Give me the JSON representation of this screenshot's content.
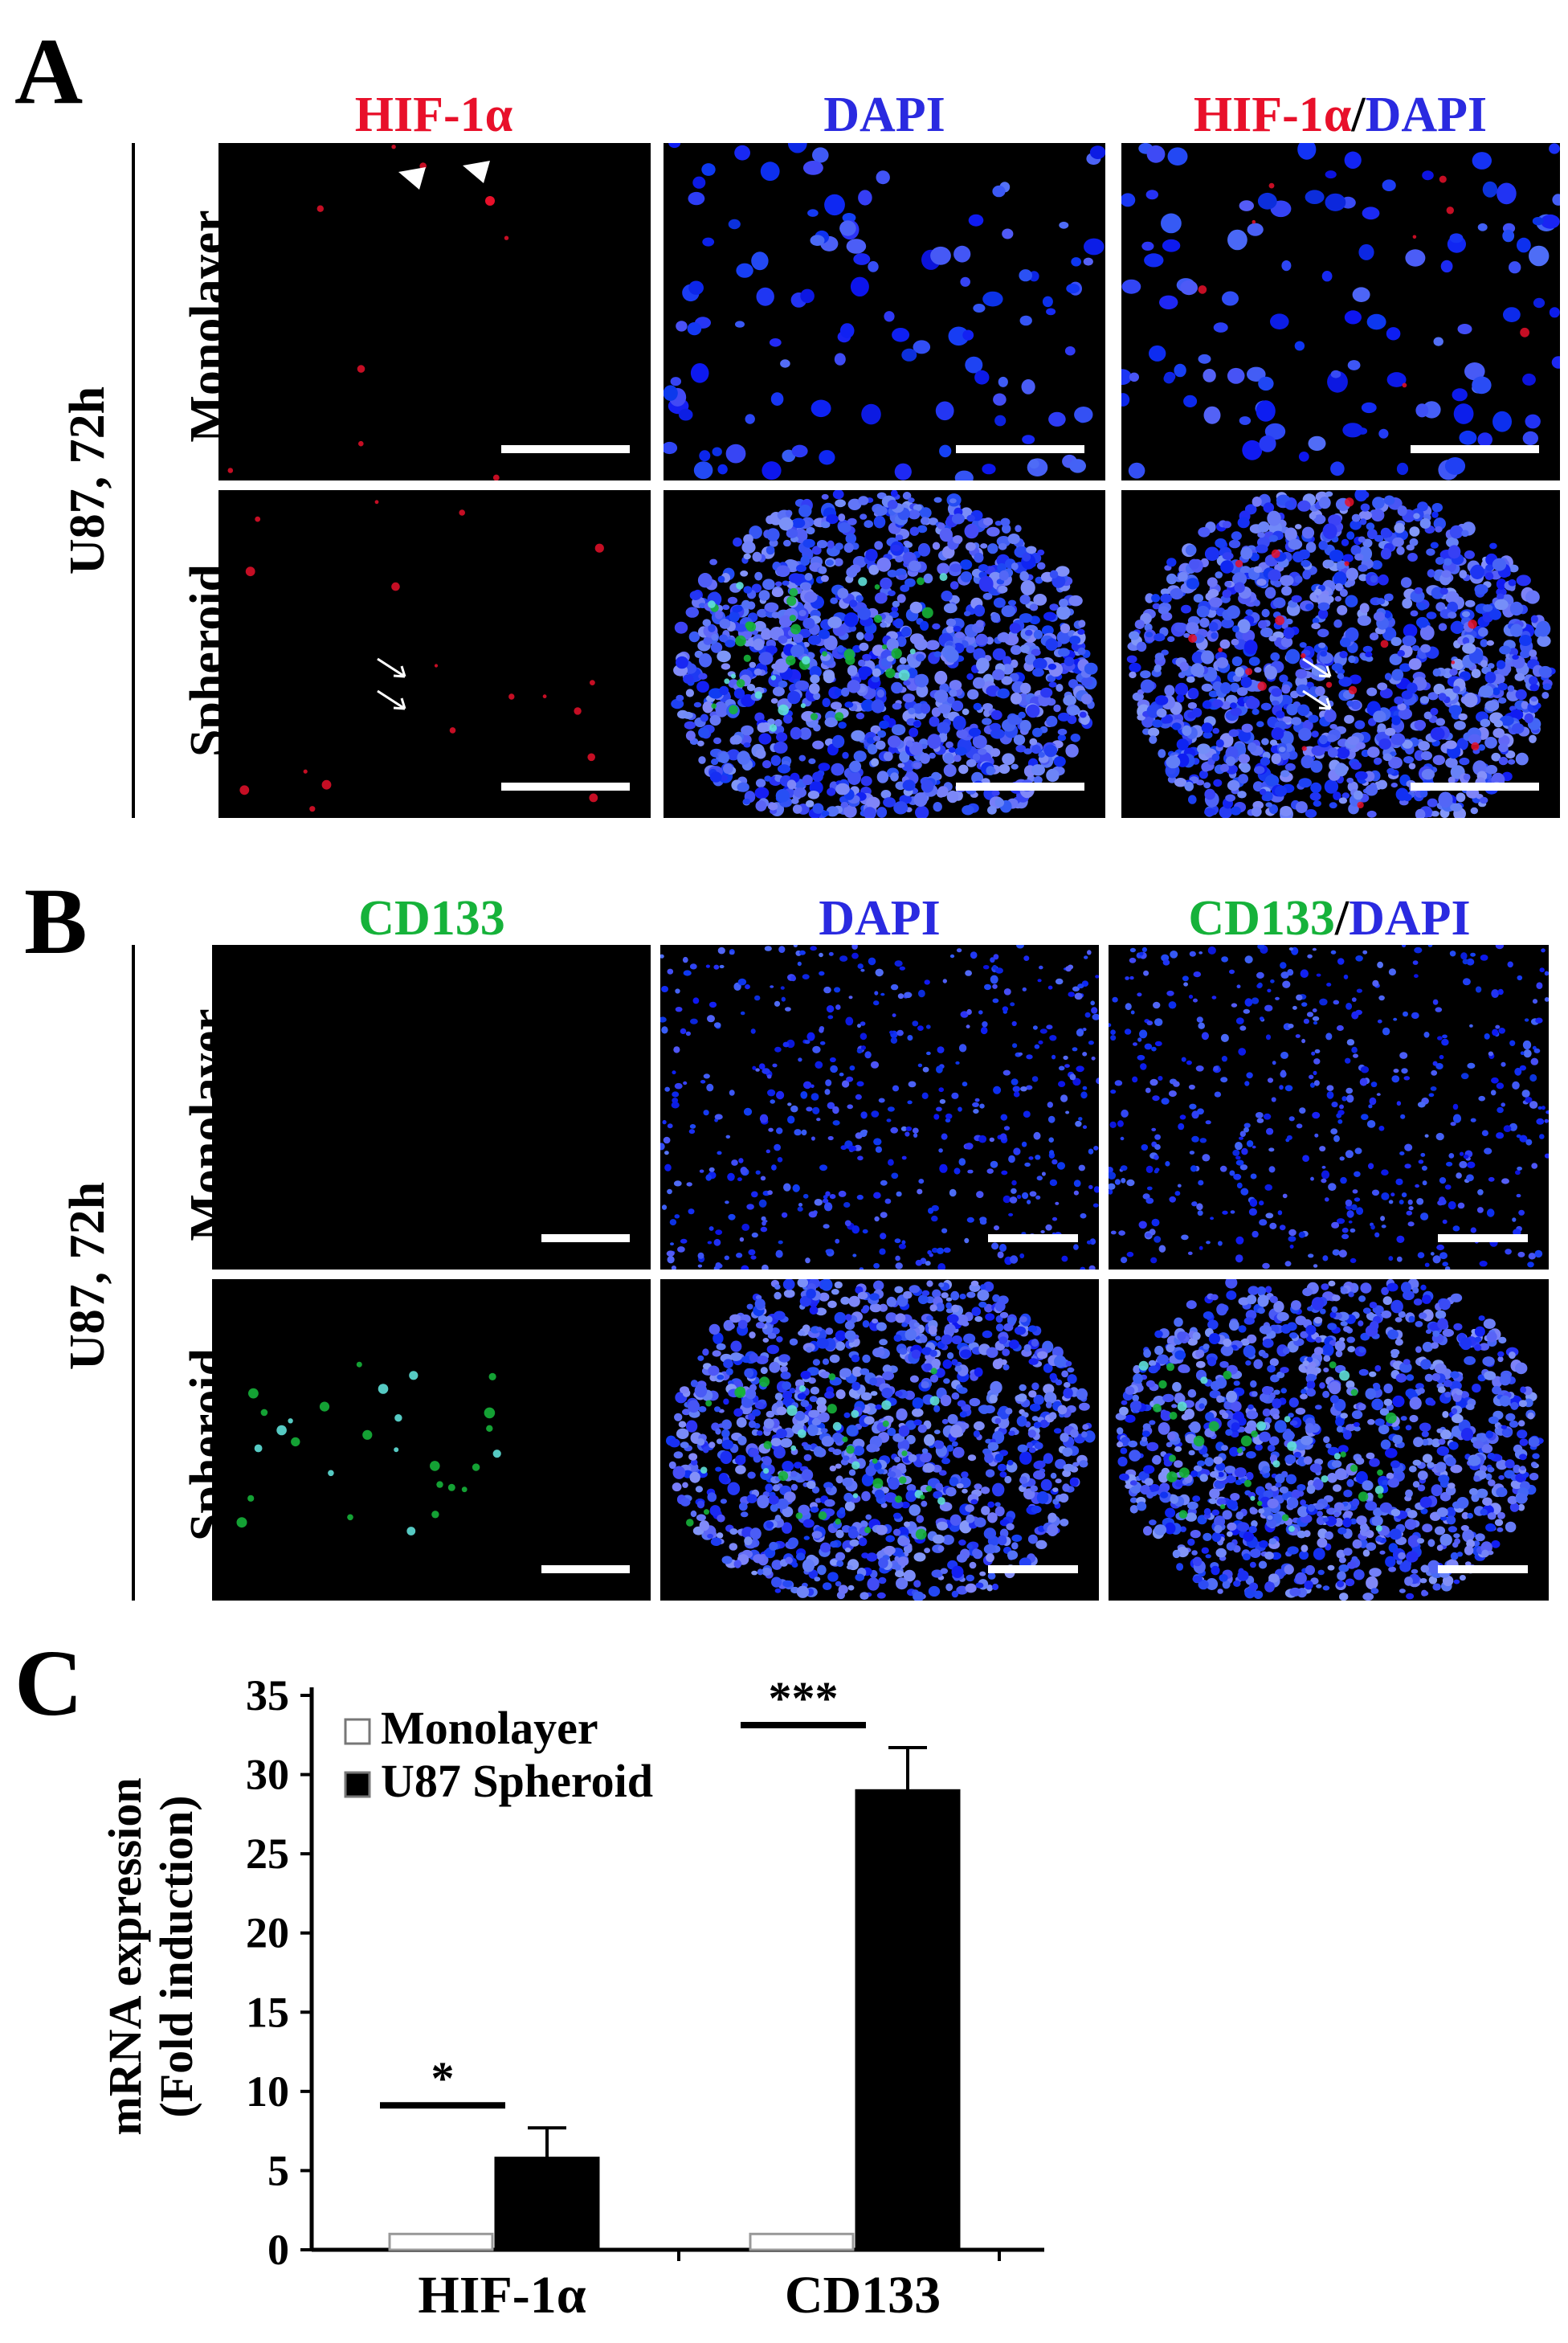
{
  "panels": {
    "A": {
      "letter": "A",
      "side_label": "U87, 72h",
      "columns": [
        {
          "parts": [
            {
              "text": "HIF-1α",
              "color": "#e8102a"
            }
          ]
        },
        {
          "parts": [
            {
              "text": "DAPI",
              "color": "#2a2ae0"
            }
          ]
        },
        {
          "parts": [
            {
              "text": "HIF-1α",
              "color": "#e8102a"
            },
            {
              "text": "/",
              "color": "#000000"
            },
            {
              "text": "DAPI",
              "color": "#2a2ae0"
            }
          ]
        }
      ],
      "rows": [
        "Monolayer",
        "Spheroid"
      ]
    },
    "B": {
      "letter": "B",
      "side_label": "U87, 72h",
      "columns": [
        {
          "parts": [
            {
              "text": "CD133",
              "color": "#16b23a"
            }
          ]
        },
        {
          "parts": [
            {
              "text": "DAPI",
              "color": "#2a2ae0"
            }
          ]
        },
        {
          "parts": [
            {
              "text": "CD133",
              "color": "#16b23a"
            },
            {
              "text": "/",
              "color": "#000000"
            },
            {
              "text": "DAPI",
              "color": "#2a2ae0"
            }
          ]
        }
      ],
      "rows": [
        "Monolayer",
        "Spheroid"
      ]
    },
    "C": {
      "letter": "C"
    }
  },
  "colors": {
    "hif_red": "#e8102a",
    "dapi_blue": "#2a2ae0",
    "cd133_green": "#16b23a"
  },
  "chart_data": {
    "type": "bar",
    "categories": [
      "HIF-1α",
      "CD133"
    ],
    "series": [
      {
        "name": "Monolayer",
        "values": [
          1,
          1
        ],
        "errors": [
          0,
          0
        ],
        "fill": "#ffffff"
      },
      {
        "name": "U87 Spheroid",
        "values": [
          5.8,
          29.0
        ],
        "errors": [
          1.9,
          2.7
        ],
        "fill": "#000000"
      }
    ],
    "significance": [
      "*",
      "***"
    ],
    "ylabel_line1": "mRNA expression",
    "ylabel_line2": "(Fold induction)",
    "ylim": [
      0,
      35
    ],
    "yticks": [
      0,
      5,
      10,
      15,
      20,
      25,
      30,
      35
    ],
    "legend_position": "top-left",
    "grid": false
  }
}
